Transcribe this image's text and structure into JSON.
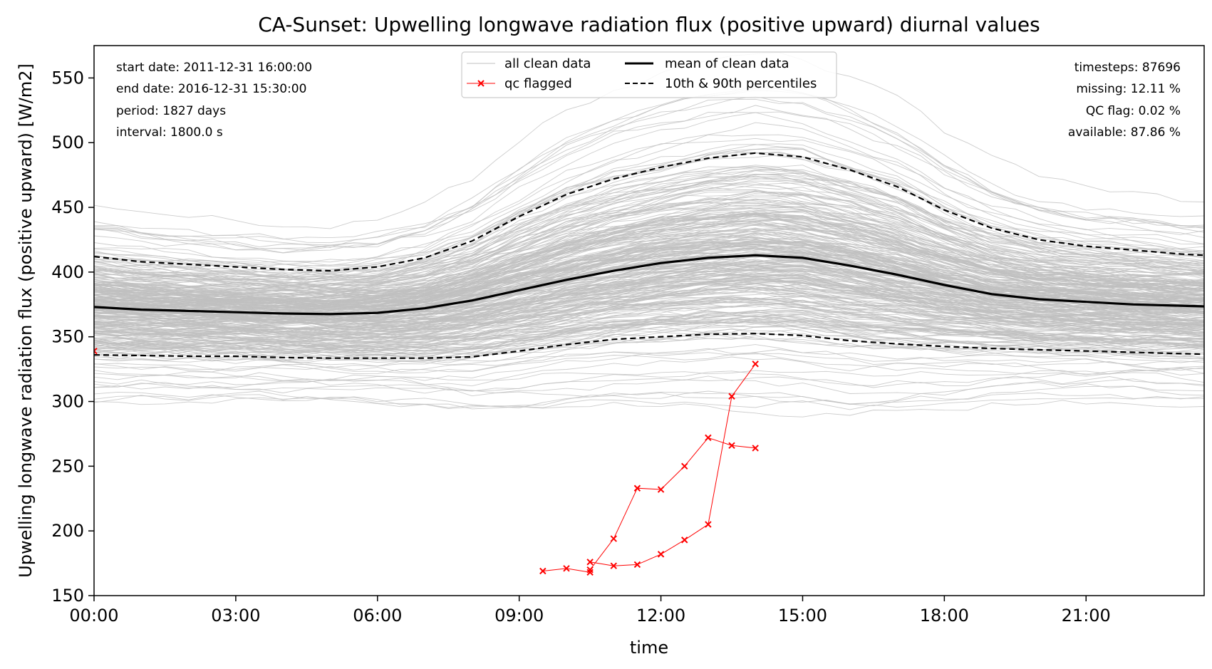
{
  "chart_data": {
    "type": "line",
    "title": "CA-Sunset: Upwelling longwave radiation flux (positive upward) diurnal values",
    "xlabel": "time",
    "ylabel": "Upwelling longwave radiation flux (positive upward) [W/m2]",
    "xlim_hours": [
      0,
      23.5
    ],
    "ylim": [
      150,
      575
    ],
    "x_ticks": [
      {
        "hour": 0,
        "label": "00:00"
      },
      {
        "hour": 3,
        "label": "03:00"
      },
      {
        "hour": 6,
        "label": "06:00"
      },
      {
        "hour": 9,
        "label": "09:00"
      },
      {
        "hour": 12,
        "label": "12:00"
      },
      {
        "hour": 15,
        "label": "15:00"
      },
      {
        "hour": 18,
        "label": "18:00"
      },
      {
        "hour": 21,
        "label": "21:00"
      }
    ],
    "y_ticks": [
      150,
      200,
      250,
      300,
      350,
      400,
      450,
      500,
      550
    ],
    "grid": false,
    "legend_placement": "top-center",
    "legend": [
      {
        "key": "all",
        "label": "all clean data"
      },
      {
        "key": "qc",
        "label": "qc flagged"
      },
      {
        "key": "mean",
        "label": "mean of clean data"
      },
      {
        "key": "pct",
        "label": "10th & 90th percentiles"
      }
    ],
    "info_left": [
      "start date: 2011-12-31 16:00:00",
      "end date: 2016-12-31 15:30:00",
      "period: 1827 days",
      "interval: 1800.0 s"
    ],
    "info_right": [
      "timesteps: 87696",
      "missing: 12.11 %",
      "QC flag: 0.02 %",
      "available: 87.86 %"
    ],
    "colors": {
      "all_clean": "#bfbfbf",
      "qc_flagged": "#ff0000",
      "mean": "#000000",
      "percentiles": "#000000"
    },
    "series": [
      {
        "key": "mean",
        "x": [
          0,
          1,
          2,
          3,
          4,
          5,
          6,
          7,
          8,
          9,
          10,
          11,
          12,
          13,
          14,
          15,
          16,
          17,
          18,
          19,
          20,
          21,
          22,
          23,
          23.5
        ],
        "y": [
          373,
          371,
          370,
          369,
          368,
          367.5,
          368.5,
          372,
          378,
          386,
          394,
          401,
          407,
          411,
          413,
          411,
          405,
          398,
          390,
          383,
          379,
          377,
          375,
          374,
          373.5
        ]
      },
      {
        "key": "p90",
        "x": [
          0,
          1,
          2,
          3,
          4,
          5,
          6,
          7,
          8,
          9,
          10,
          11,
          12,
          13,
          14,
          15,
          16,
          17,
          18,
          19,
          20,
          21,
          22,
          23,
          23.5
        ],
        "y": [
          412,
          408,
          406,
          404,
          402,
          401,
          404,
          411,
          424,
          443,
          460,
          472,
          481,
          488,
          492,
          489,
          479,
          466,
          448,
          434,
          425,
          420,
          417,
          414,
          413
        ]
      },
      {
        "key": "p10",
        "x": [
          0,
          1,
          2,
          3,
          4,
          5,
          6,
          7,
          8,
          9,
          10,
          11,
          12,
          13,
          14,
          15,
          16,
          17,
          18,
          19,
          20,
          21,
          22,
          23,
          23.5
        ],
        "y": [
          336,
          335.5,
          335,
          335,
          334,
          333.5,
          333.5,
          333.5,
          334.5,
          339,
          344,
          348,
          350,
          352,
          352.5,
          351,
          347,
          344.5,
          342.5,
          341,
          340,
          339,
          338,
          337,
          336.5
        ]
      },
      {
        "key": "qc_flagged",
        "points": [
          {
            "x": 0,
            "y": 339
          },
          {
            "x": 9.5,
            "y": 169
          },
          {
            "x": 10,
            "y": 171
          },
          {
            "x": 10.5,
            "y": 168
          },
          {
            "x": 10.5,
            "y": 170
          },
          {
            "x": 10.5,
            "y": 176
          },
          {
            "x": 11,
            "y": 194
          },
          {
            "x": 11.5,
            "y": 233
          },
          {
            "x": 12,
            "y": 232
          },
          {
            "x": 12.5,
            "y": 250
          },
          {
            "x": 13,
            "y": 272
          },
          {
            "x": 13.5,
            "y": 266
          },
          {
            "x": 14,
            "y": 264
          },
          {
            "x": 11,
            "y": 173
          },
          {
            "x": 11.5,
            "y": 174
          },
          {
            "x": 12,
            "y": 182
          },
          {
            "x": 12.5,
            "y": 193
          },
          {
            "x": 13,
            "y": 205
          },
          {
            "x": 13.5,
            "y": 304
          },
          {
            "x": 14,
            "y": 329
          }
        ],
        "segments": [
          [
            [
              9.5,
              169
            ],
            [
              10,
              171
            ],
            [
              10.5,
              168
            ]
          ],
          [
            [
              10.5,
              170
            ],
            [
              11,
              194
            ],
            [
              11.5,
              233
            ],
            [
              12,
              232
            ],
            [
              12.5,
              250
            ],
            [
              13,
              272
            ],
            [
              13.5,
              266
            ],
            [
              14,
              264
            ]
          ],
          [
            [
              10.5,
              176
            ],
            [
              11,
              173
            ],
            [
              11.5,
              174
            ],
            [
              12,
              182
            ],
            [
              12.5,
              193
            ],
            [
              13,
              205
            ],
            [
              13.5,
              304
            ],
            [
              14,
              329
            ]
          ]
        ]
      }
    ]
  }
}
